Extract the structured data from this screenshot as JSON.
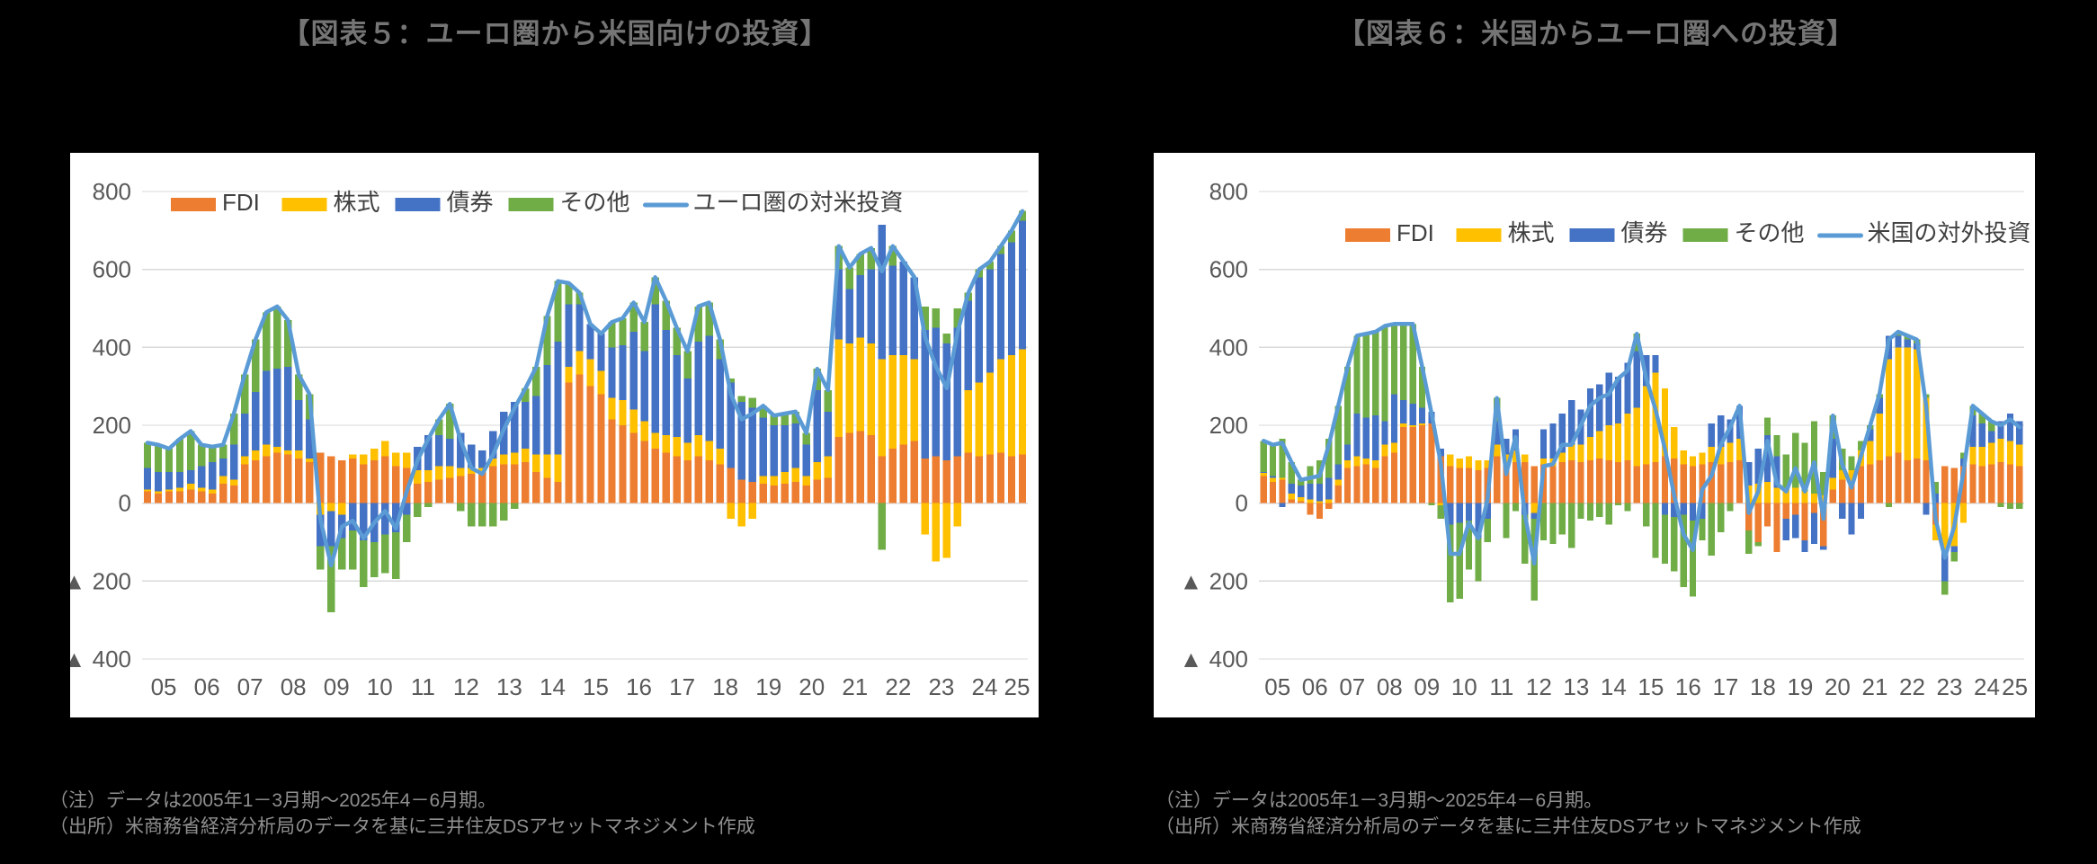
{
  "page": {
    "background": "#000000"
  },
  "figures": [
    {
      "notes": [
        "（注）データは2005年1－3月期～2025年4－6月期。",
        "（出所）米商務省経済分析局のデータを基に三井住友DSアセットマネジメント作成"
      ]
    },
    {
      "notes": [
        "（注）データは2005年1－3月期～2025年4－6月期。",
        "（出所）米商務省経済分析局のデータを基に三井住友DSアセットマネジメント作成"
      ]
    }
  ],
  "colors": {
    "fdi": "#ED7D31",
    "equity": "#FFC000",
    "bonds": "#4472C4",
    "other": "#70AD47",
    "line": "#5B9BD5",
    "grid": "#D9D9D9",
    "axis_text": "#595959",
    "legend_text": "#404040",
    "panel": "#FFFFFF",
    "title": "#757575",
    "notes": "#8F8F8F"
  },
  "chart_data": [
    {
      "type": "bar",
      "stacked": true,
      "title": "【図表５：ユーロ圏から米国向けの投資】",
      "ylim": [
        -400,
        800
      ],
      "ytick_step": 200,
      "yticks": [
        "800",
        "600",
        "400",
        "200",
        "0",
        "▲ 200",
        "▲ 400"
      ],
      "year_labels": [
        "05",
        "06",
        "07",
        "08",
        "09",
        "10",
        "11",
        "12",
        "13",
        "14",
        "15",
        "16",
        "17",
        "18",
        "19",
        "20",
        "21",
        "22",
        "23",
        "24",
        "25"
      ],
      "grid": true,
      "legend_position": "inside-top",
      "series": [
        {
          "key": "fdi",
          "name": "FDI",
          "type": "bar",
          "color": "#ED7D31",
          "values": [
            30,
            25,
            30,
            30,
            35,
            30,
            25,
            50,
            45,
            100,
            110,
            120,
            130,
            125,
            115,
            105,
            130,
            120,
            110,
            115,
            100,
            110,
            120,
            95,
            90,
            50,
            55,
            60,
            65,
            70,
            75,
            80,
            95,
            100,
            100,
            105,
            80,
            65,
            55,
            310,
            330,
            300,
            280,
            215,
            200,
            180,
            160,
            140,
            130,
            120,
            110,
            120,
            110,
            100,
            90,
            60,
            55,
            50,
            45,
            50,
            55,
            45,
            60,
            65,
            170,
            180,
            185,
            175,
            120,
            140,
            150,
            160,
            115,
            120,
            110,
            120,
            130,
            120,
            125,
            130,
            120,
            125
          ]
        },
        {
          "key": "equity",
          "name": "株式",
          "type": "bar",
          "color": "#FFC000",
          "values": [
            5,
            5,
            5,
            10,
            15,
            10,
            10,
            20,
            15,
            20,
            25,
            30,
            15,
            10,
            20,
            10,
            -30,
            -20,
            -30,
            10,
            25,
            30,
            40,
            35,
            40,
            35,
            30,
            35,
            30,
            20,
            15,
            10,
            20,
            25,
            30,
            35,
            45,
            60,
            70,
            40,
            60,
            70,
            60,
            55,
            65,
            60,
            50,
            40,
            45,
            50,
            45,
            55,
            50,
            40,
            -40,
            -60,
            -40,
            20,
            25,
            30,
            35,
            25,
            45,
            55,
            250,
            230,
            240,
            235,
            250,
            240,
            230,
            210,
            -80,
            -150,
            -140,
            -60,
            160,
            190,
            210,
            240,
            260,
            270
          ]
        },
        {
          "key": "bonds",
          "name": "債券",
          "type": "bar",
          "color": "#4472C4",
          "values": [
            55,
            50,
            45,
            40,
            35,
            55,
            70,
            45,
            90,
            110,
            150,
            190,
            200,
            215,
            130,
            100,
            -80,
            -90,
            -60,
            -70,
            -95,
            -100,
            -80,
            -75,
            -30,
            60,
            90,
            80,
            70,
            90,
            60,
            45,
            70,
            110,
            130,
            120,
            150,
            230,
            290,
            160,
            120,
            90,
            95,
            130,
            140,
            200,
            180,
            330,
            270,
            210,
            165,
            240,
            270,
            230,
            220,
            200,
            190,
            150,
            130,
            120,
            115,
            80,
            185,
            115,
            180,
            140,
            160,
            190,
            345,
            230,
            240,
            210,
            330,
            330,
            300,
            330,
            230,
            270,
            265,
            270,
            290,
            330
          ]
        },
        {
          "key": "other",
          "name": "その他",
          "type": "bar",
          "color": "#70AD47",
          "values": [
            65,
            70,
            60,
            85,
            100,
            55,
            40,
            35,
            80,
            100,
            135,
            150,
            160,
            120,
            65,
            65,
            -60,
            -170,
            -80,
            -100,
            -120,
            -90,
            -100,
            -120,
            -70,
            -35,
            -10,
            40,
            90,
            -20,
            -60,
            -60,
            -60,
            -45,
            -15,
            35,
            75,
            125,
            155,
            55,
            30,
            0,
            0,
            65,
            70,
            75,
            75,
            70,
            75,
            70,
            70,
            90,
            85,
            50,
            10,
            15,
            25,
            30,
            25,
            30,
            30,
            30,
            55,
            55,
            60,
            55,
            55,
            55,
            -120,
            50,
            0,
            0,
            60,
            50,
            25,
            50,
            20,
            20,
            20,
            20,
            30,
            25
          ]
        },
        {
          "key": "total-line",
          "name": "ユーロ圏の対米投資",
          "type": "line",
          "color": "#5B9BD5",
          "values": [
            155,
            150,
            140,
            165,
            185,
            150,
            145,
            150,
            230,
            330,
            420,
            490,
            505,
            470,
            330,
            280,
            -40,
            -160,
            -60,
            -45,
            -90,
            -50,
            -20,
            -65,
            30,
            110,
            165,
            215,
            255,
            160,
            90,
            75,
            125,
            190,
            245,
            295,
            350,
            480,
            570,
            565,
            540,
            460,
            435,
            465,
            475,
            515,
            465,
            580,
            520,
            450,
            390,
            505,
            515,
            420,
            280,
            215,
            230,
            250,
            225,
            230,
            235,
            180,
            345,
            290,
            660,
            605,
            640,
            655,
            595,
            660,
            620,
            580,
            425,
            350,
            295,
            440,
            540,
            600,
            620,
            660,
            700,
            750
          ]
        }
      ]
    },
    {
      "type": "bar",
      "stacked": true,
      "title": "【図表６：米国からユーロ圏への投資】",
      "ylim": [
        -400,
        800
      ],
      "ytick_step": 200,
      "yticks": [
        "800",
        "600",
        "400",
        "200",
        "0",
        "▲ 200",
        "▲ 400"
      ],
      "year_labels": [
        "05",
        "06",
        "07",
        "08",
        "09",
        "10",
        "11",
        "12",
        "13",
        "14",
        "15",
        "16",
        "17",
        "18",
        "19",
        "20",
        "21",
        "22",
        "23",
        "24",
        "25"
      ],
      "grid": true,
      "legend_position": "inside-top",
      "series": [
        {
          "key": "fdi",
          "name": "FDI",
          "type": "bar",
          "color": "#ED7D31",
          "values": [
            70,
            55,
            60,
            10,
            5,
            -30,
            -40,
            -15,
            45,
            90,
            95,
            100,
            90,
            120,
            130,
            195,
            195,
            200,
            205,
            120,
            95,
            90,
            90,
            85,
            90,
            120,
            100,
            105,
            105,
            95,
            100,
            95,
            105,
            110,
            105,
            110,
            115,
            110,
            105,
            110,
            95,
            100,
            105,
            120,
            115,
            100,
            95,
            100,
            105,
            100,
            105,
            110,
            -70,
            -100,
            -60,
            -125,
            -40,
            -30,
            -95,
            -25,
            -110,
            35,
            60,
            55,
            95,
            100,
            110,
            120,
            130,
            110,
            115,
            110,
            -55,
            95,
            90,
            95,
            100,
            95,
            100,
            105,
            100,
            95
          ]
        },
        {
          "key": "equity",
          "name": "株式",
          "type": "bar",
          "color": "#FFC000",
          "values": [
            8,
            10,
            5,
            15,
            10,
            10,
            5,
            10,
            15,
            20,
            25,
            15,
            20,
            30,
            25,
            10,
            5,
            5,
            0,
            -5,
            30,
            25,
            30,
            25,
            20,
            30,
            25,
            30,
            20,
            -25,
            15,
            20,
            25,
            40,
            45,
            60,
            70,
            90,
            100,
            120,
            150,
            200,
            230,
            175,
            80,
            35,
            25,
            30,
            40,
            45,
            50,
            55,
            45,
            50,
            55,
            40,
            35,
            40,
            30,
            25,
            20,
            30,
            25,
            30,
            40,
            60,
            120,
            250,
            270,
            290,
            280,
            160,
            -40,
            -120,
            -110,
            -50,
            45,
            50,
            55,
            60,
            60,
            55
          ]
        },
        {
          "key": "bonds",
          "name": "債券",
          "type": "bar",
          "color": "#4472C4",
          "values": [
            2,
            5,
            -10,
            25,
            30,
            40,
            45,
            55,
            40,
            40,
            110,
            105,
            115,
            60,
            125,
            60,
            55,
            40,
            30,
            20,
            -55,
            -50,
            -45,
            -90,
            -40,
            60,
            40,
            55,
            -30,
            -15,
            75,
            90,
            100,
            115,
            90,
            125,
            120,
            135,
            120,
            130,
            145,
            80,
            45,
            -30,
            -35,
            -30,
            -45,
            -40,
            60,
            80,
            60,
            85,
            60,
            90,
            120,
            80,
            -55,
            -60,
            -30,
            -80,
            -10,
            100,
            -40,
            -80,
            -40,
            30,
            40,
            60,
            30,
            20,
            15,
            -30,
            25,
            -80,
            -15,
            20,
            80,
            60,
            30,
            45,
            70,
            60
          ]
        },
        {
          "key": "other",
          "name": "その他",
          "type": "bar",
          "color": "#70AD47",
          "values": [
            80,
            80,
            100,
            55,
            15,
            45,
            60,
            100,
            150,
            200,
            200,
            215,
            215,
            245,
            180,
            195,
            205,
            105,
            -5,
            -35,
            -200,
            -195,
            -125,
            -110,
            -60,
            60,
            -90,
            -20,
            -125,
            -210,
            -95,
            -105,
            -80,
            -115,
            -40,
            -45,
            -35,
            -55,
            -5,
            -20,
            45,
            -60,
            -140,
            -125,
            -140,
            -185,
            -195,
            -55,
            -135,
            -75,
            -20,
            0,
            -60,
            -10,
            45,
            55,
            90,
            140,
            125,
            185,
            60,
            60,
            55,
            35,
            25,
            10,
            10,
            -10,
            10,
            10,
            10,
            10,
            30,
            -35,
            -25,
            15,
            25,
            25,
            25,
            -10,
            -15,
            -15
          ]
        },
        {
          "key": "total-line",
          "name": "米国の対外投資",
          "type": "line",
          "color": "#5B9BD5",
          "values": [
            160,
            150,
            155,
            105,
            60,
            65,
            70,
            150,
            250,
            350,
            430,
            435,
            440,
            455,
            460,
            460,
            460,
            350,
            230,
            100,
            -130,
            -130,
            -50,
            -90,
            10,
            270,
            75,
            170,
            -30,
            -155,
            95,
            100,
            150,
            150,
            200,
            250,
            270,
            280,
            320,
            340,
            435,
            320,
            240,
            140,
            20,
            -80,
            -120,
            35,
            70,
            150,
            195,
            250,
            -25,
            30,
            160,
            50,
            30,
            90,
            30,
            105,
            -40,
            225,
            100,
            40,
            120,
            200,
            280,
            420,
            440,
            430,
            420,
            250,
            -40,
            -140,
            -60,
            80,
            250,
            230,
            210,
            200,
            215,
            195
          ]
        }
      ]
    }
  ]
}
